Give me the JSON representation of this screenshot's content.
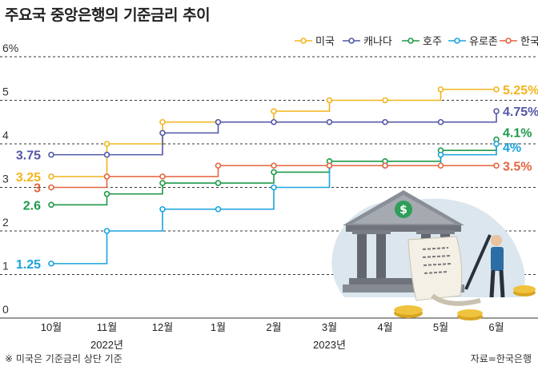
{
  "title": "주요국 중앙은행의 기준금리 추이",
  "footnote": "※ 미국은 기준금리 상단 기준",
  "source": "자료=한국은행",
  "colors": {
    "us": "#f2b51d",
    "canada": "#5257a6",
    "australia": "#1f9a4a",
    "eurozone": "#1aa3dc",
    "korea": "#e5643f",
    "grid": "#333333"
  },
  "chart_data": {
    "type": "line",
    "step": true,
    "y_ticks": [
      "0",
      "1",
      "2",
      "3",
      "4",
      "5",
      "6%"
    ],
    "ylim": [
      0,
      6
    ],
    "grid": "dashed horizontal",
    "legend_position": "top-right",
    "x_ticks": [
      "10월",
      "11월",
      "12월",
      "1월",
      "2월",
      "3월",
      "4월",
      "5월",
      "6월"
    ],
    "year_labels": [
      {
        "label": "2022년",
        "under": "11월"
      },
      {
        "label": "2023년",
        "under": "3월"
      }
    ],
    "series": [
      {
        "name": "미국",
        "color_key": "us",
        "values": [
          3.25,
          4.0,
          4.5,
          4.5,
          4.75,
          5.0,
          5.0,
          5.25,
          5.25
        ],
        "start_label": "3.25",
        "end_label": "5.25%"
      },
      {
        "name": "캐나다",
        "color_key": "canada",
        "values": [
          3.75,
          3.75,
          4.25,
          4.5,
          4.5,
          4.5,
          4.5,
          4.5,
          4.75
        ],
        "start_label": "3.75",
        "end_label": "4.75%"
      },
      {
        "name": "호주",
        "color_key": "australia",
        "values": [
          2.6,
          2.85,
          3.1,
          3.1,
          3.35,
          3.6,
          3.6,
          3.85,
          4.1
        ],
        "start_label": "2.6",
        "end_label": "4.1%"
      },
      {
        "name": "유로존",
        "color_key": "eurozone",
        "values": [
          1.25,
          2.0,
          2.5,
          2.5,
          3.0,
          3.5,
          3.5,
          3.75,
          4.0
        ],
        "start_label": "1.25",
        "end_label": "4%"
      },
      {
        "name": "한국",
        "color_key": "korea",
        "values": [
          3.0,
          3.25,
          3.25,
          3.5,
          3.5,
          3.5,
          3.5,
          3.5,
          3.5
        ],
        "start_label": "3",
        "end_label": "3.5%"
      }
    ]
  }
}
